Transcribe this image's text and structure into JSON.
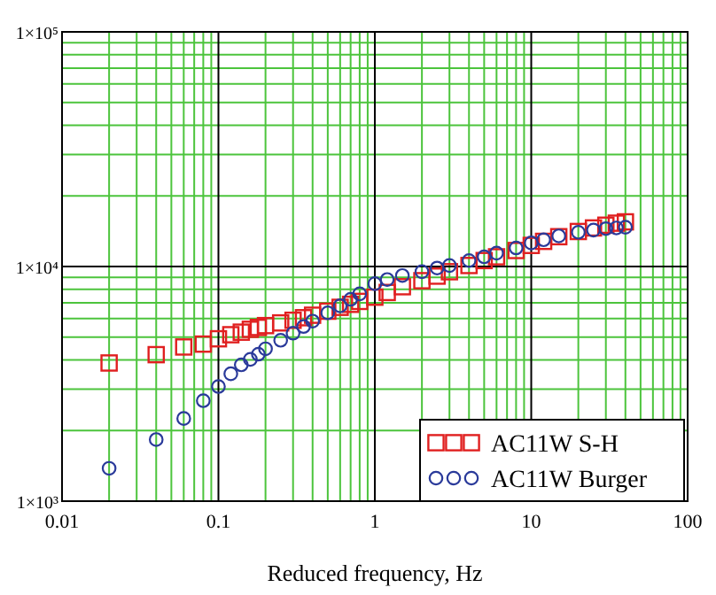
{
  "chart_data": {
    "type": "scatter",
    "xlabel": "Reduced frequency, Hz",
    "log": "xy",
    "grid": true,
    "legend": "bottom right",
    "xlim": [
      0.01,
      100
    ],
    "xticks": [
      0.01,
      {
        "value": 0.02,
        "label": null
      },
      {
        "value": 0.03,
        "label": null
      },
      {
        "value": 0.04,
        "label": null
      },
      {
        "value": 0.05,
        "label": null
      },
      {
        "value": 0.06,
        "label": null
      },
      {
        "value": 0.07,
        "label": null
      },
      {
        "value": 0.08,
        "label": null
      },
      {
        "value": 0.09,
        "label": null
      },
      0.1,
      {
        "value": 0.2,
        "label": null
      },
      {
        "value": 0.3,
        "label": null
      },
      {
        "value": 0.4,
        "label": null
      },
      {
        "value": 0.5,
        "label": null
      },
      {
        "value": 0.6,
        "label": null
      },
      {
        "value": 0.7,
        "label": null
      },
      {
        "value": 0.8,
        "label": null
      },
      {
        "value": 0.9,
        "label": null
      },
      1,
      {
        "value": 2,
        "label": null
      },
      {
        "value": 3,
        "label": null
      },
      {
        "value": 4,
        "label": null
      },
      {
        "value": 5,
        "label": null
      },
      {
        "value": 6,
        "label": null
      },
      {
        "value": 7,
        "label": null
      },
      {
        "value": 8,
        "label": null
      },
      {
        "value": 9,
        "label": null
      },
      10,
      {
        "value": 20,
        "label": null
      },
      {
        "value": 30,
        "label": null
      },
      {
        "value": 40,
        "label": null
      },
      {
        "value": 50,
        "label": null
      },
      {
        "value": 60,
        "label": null
      },
      {
        "value": 70,
        "label": null
      },
      {
        "value": 80,
        "label": null
      },
      {
        "value": 90,
        "label": null
      },
      100
    ],
    "ylim": [
      1000,
      100000
    ],
    "yticks": [
      {
        "value": 1000,
        "label": "1×10³"
      },
      {
        "value": 2000,
        "label": null
      },
      {
        "value": 3000,
        "label": null
      },
      {
        "value": 4000,
        "label": null
      },
      {
        "value": 5000,
        "label": null
      },
      {
        "value": 6000,
        "label": null
      },
      {
        "value": 7000,
        "label": null
      },
      {
        "value": 8000,
        "label": null
      },
      {
        "value": 9000,
        "label": null
      },
      {
        "value": 10000,
        "label": "1×10⁴"
      },
      {
        "value": 20000,
        "label": null
      },
      {
        "value": 30000,
        "label": null
      },
      {
        "value": 40000,
        "label": null
      },
      {
        "value": 50000,
        "label": null
      },
      {
        "value": 60000,
        "label": null
      },
      {
        "value": 70000,
        "label": null
      },
      {
        "value": 80000,
        "label": null
      },
      {
        "value": 90000,
        "label": null
      },
      {
        "value": 100000,
        "label": "1×10⁵"
      }
    ],
    "x": [
      0.02,
      0.04,
      0.06,
      0.08,
      0.1,
      0.12,
      0.14,
      0.16,
      0.18,
      0.2,
      0.25,
      0.3,
      0.35,
      0.4,
      0.5,
      0.6,
      0.7,
      0.8,
      1,
      1.2,
      1.5,
      2,
      2.5,
      3,
      4,
      5,
      6,
      8,
      10,
      12,
      15,
      20,
      25,
      30,
      35,
      40
    ],
    "series": [
      {
        "name": "AC11W S-H",
        "color": "#e02020",
        "marker": "square",
        "values": [
          3880,
          4210,
          4540,
          4670,
          4920,
          5120,
          5250,
          5400,
          5500,
          5600,
          5750,
          5900,
          6050,
          6200,
          6450,
          6700,
          6900,
          7100,
          7400,
          7750,
          8200,
          8700,
          9100,
          9500,
          10100,
          10600,
          11000,
          11700,
          12300,
          12800,
          13400,
          14100,
          14600,
          15000,
          15300,
          15500
        ]
      },
      {
        "name": "AC11W Burger",
        "color": "#2a3a9a",
        "marker": "circle",
        "values": [
          1380,
          1830,
          2250,
          2680,
          3080,
          3490,
          3810,
          4020,
          4230,
          4460,
          4850,
          5200,
          5550,
          5850,
          6350,
          6800,
          7250,
          7650,
          8450,
          8800,
          9150,
          9500,
          9850,
          10100,
          10600,
          11000,
          11400,
          12000,
          12600,
          13000,
          13500,
          14000,
          14300,
          14500,
          14600,
          14700
        ]
      }
    ]
  }
}
